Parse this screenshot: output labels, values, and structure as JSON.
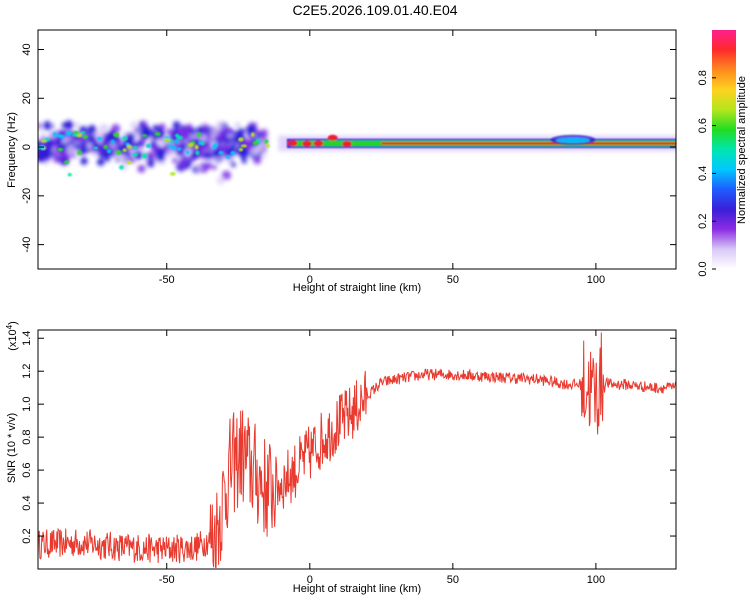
{
  "figure_title": "C2E5.2026.109.01.40.E04",
  "colors": {
    "snr_line": "#e83a2f",
    "ridge_red": "#e8242d",
    "ridge_green": "#22dd22",
    "scatter_blue": "#2b1fd8",
    "scatter_violet": "#7a2de6",
    "halo_lavender": "#d9c8f7"
  },
  "chart_data": [
    {
      "type": "heatmap",
      "title": "",
      "xlabel": "Height of straight line (km)",
      "ylabel": "Frequency (Hz)",
      "xlim": [
        -95,
        128
      ],
      "ylim": [
        -50,
        48
      ],
      "x_ticks": [
        -50,
        0,
        50,
        100
      ],
      "x_tick_labels": [
        "-50",
        "0",
        "50",
        "100"
      ],
      "y_ticks": [
        -40,
        -20,
        0,
        20,
        40
      ],
      "y_tick_labels": [
        "-40",
        "-20",
        "0",
        "20",
        "40"
      ],
      "colorbar": {
        "label": "Normalized spectral amplitude",
        "range": [
          0,
          1
        ],
        "ticks": [
          0,
          0.2,
          0.4,
          0.6,
          0.8
        ],
        "tick_labels": [
          "0.0",
          "0.2",
          "0.4",
          "0.6",
          "0.8"
        ],
        "colormap": [
          "#ffffff",
          "#d9c8f7",
          "#8a2be2",
          "#3a1fd8",
          "#1e5cff",
          "#00c8ff",
          "#00e6b0",
          "#22dd22",
          "#b5e61d",
          "#ffd21f",
          "#ff8a1f",
          "#ff2a2a",
          "#ff1f8f"
        ]
      },
      "features": {
        "ridge_frequency_hz": 1.5,
        "ridge_start_km": -8,
        "scatter_region_km": [
          -95,
          -20
        ],
        "scatter_frequency_range_hz": [
          -16,
          9
        ]
      }
    },
    {
      "type": "line",
      "title": "",
      "xlabel": "Height of straight line (km)",
      "ylabel": "SNR (10 * v/v)",
      "y_scale_label": "(x10^4)",
      "y_scale_base": "(x10",
      "y_scale_exponent": "4",
      "y_scale_close": ")",
      "xlim": [
        -95,
        128
      ],
      "ylim": [
        0,
        1.45
      ],
      "x_ticks": [
        -50,
        0,
        50,
        100
      ],
      "x_tick_labels": [
        "-50",
        "0",
        "50",
        "100"
      ],
      "y_ticks": [
        0.2,
        0.4,
        0.6,
        0.8,
        1.0,
        1.2,
        1.4
      ],
      "y_tick_labels": [
        "0.2",
        "0.4",
        "0.6",
        "0.8",
        "1.0",
        "1.2",
        "1.4"
      ],
      "series": [
        {
          "name": "SNR",
          "x": [
            -95,
            -80,
            -65,
            -50,
            -40,
            -33,
            -28,
            -24,
            -20,
            -15,
            -10,
            -5,
            0,
            5,
            10,
            15,
            20,
            25,
            30,
            40,
            50,
            60,
            70,
            80,
            90,
            95,
            98,
            100,
            102,
            105,
            110,
            120,
            128
          ],
          "values": [
            0.15,
            0.16,
            0.13,
            0.12,
            0.13,
            0.2,
            0.6,
            0.7,
            0.6,
            0.48,
            0.52,
            0.6,
            0.7,
            0.8,
            0.88,
            0.95,
            1.05,
            1.13,
            1.15,
            1.18,
            1.18,
            1.17,
            1.16,
            1.15,
            1.12,
            1.12,
            1.1,
            1.05,
            1.15,
            1.12,
            1.12,
            1.1,
            1.1
          ]
        }
      ]
    }
  ]
}
